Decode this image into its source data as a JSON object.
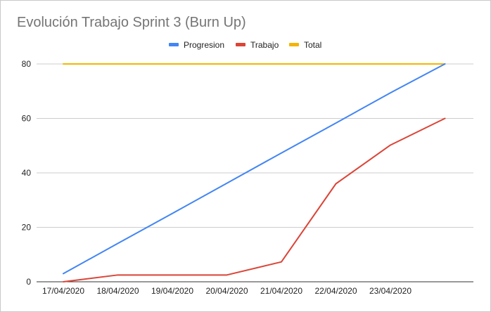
{
  "chart_data": {
    "type": "line",
    "title": "Evolución Trabajo Sprint 3 (Burn Up)",
    "xlabel": "",
    "ylabel": "",
    "categories": [
      "17/04/2020",
      "18/04/2020",
      "19/04/2020",
      "20/04/2020",
      "21/04/2020",
      "22/04/2020",
      "23/04/2020",
      ""
    ],
    "ylim": [
      0,
      80
    ],
    "yticks": [
      0,
      20,
      40,
      60,
      80
    ],
    "grid": true,
    "legend_position": "top",
    "series": [
      {
        "name": "Progresion",
        "color": "#4285f4",
        "values": [
          3,
          14.1,
          25.1,
          36.2,
          47.3,
          58.3,
          69.4,
          80
        ]
      },
      {
        "name": "Trabajo",
        "color": "#db4437",
        "values": [
          0,
          2.5,
          2.5,
          2.5,
          7.3,
          36,
          50.2,
          60
        ]
      },
      {
        "name": "Total",
        "color": "#f4b400",
        "values": [
          80,
          80,
          80,
          80,
          80,
          80,
          80,
          80
        ]
      }
    ]
  }
}
